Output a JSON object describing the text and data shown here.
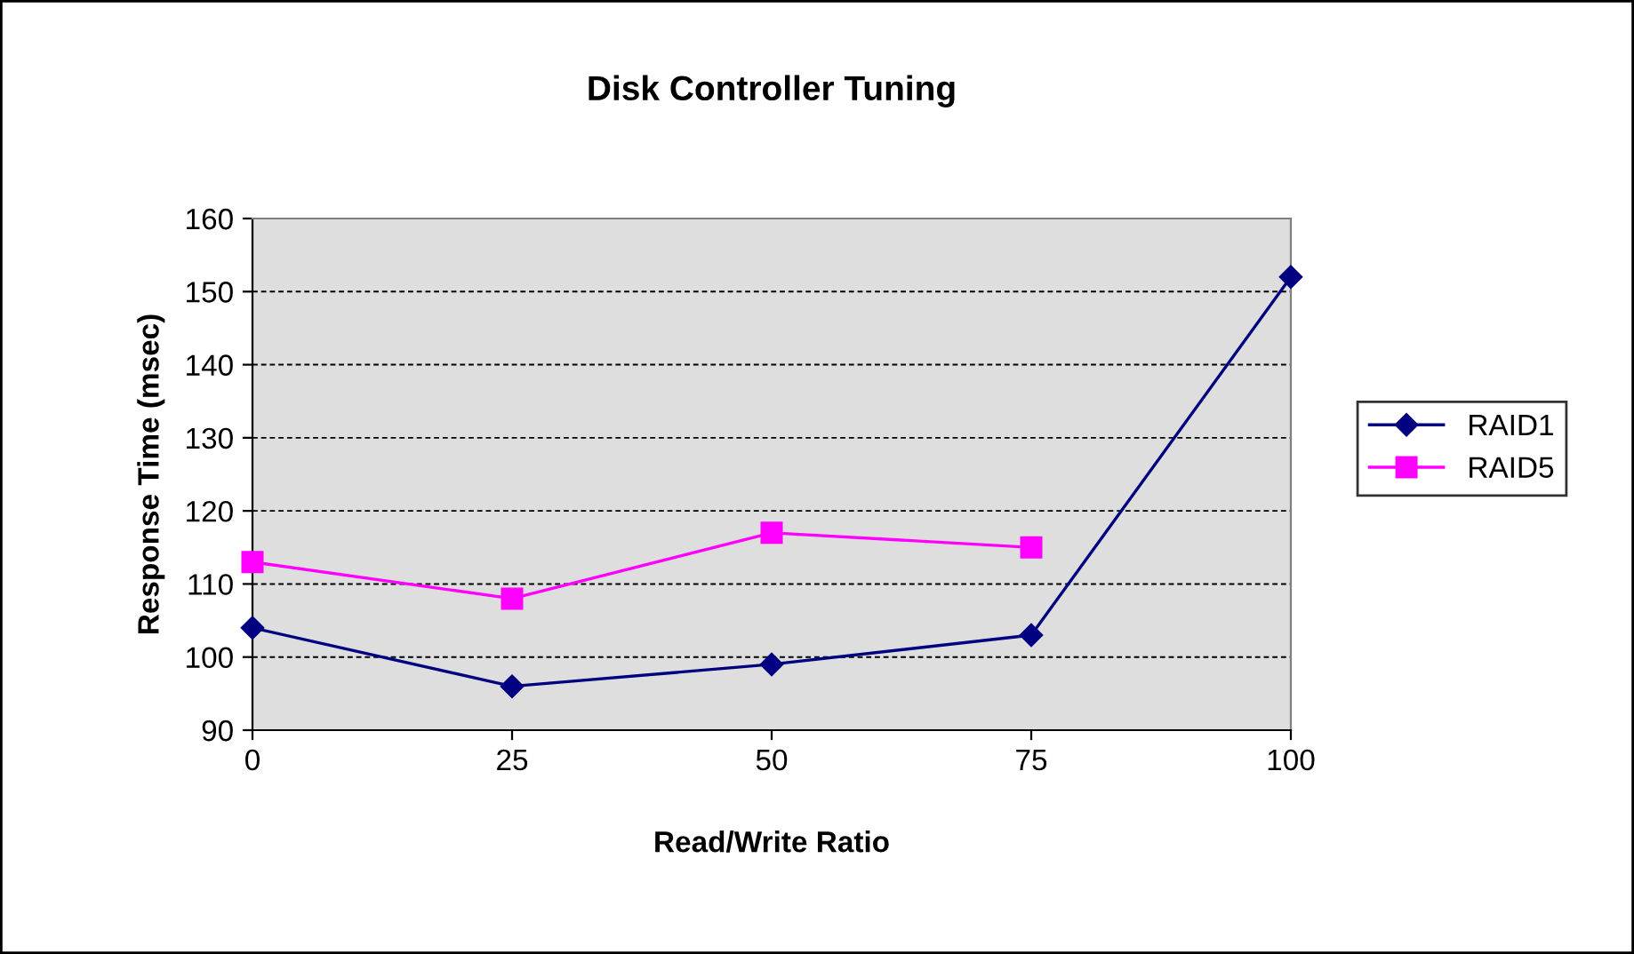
{
  "chart_data": {
    "type": "line",
    "title": "Disk Controller Tuning",
    "xlabel": "Read/Write Ratio",
    "ylabel": "Response Time (msec)",
    "x": [
      0,
      25,
      50,
      75,
      100
    ],
    "series": [
      {
        "name": "RAID1",
        "color": "#000080",
        "marker": "diamond",
        "values": [
          104,
          96,
          99,
          103,
          152
        ]
      },
      {
        "name": "RAID5",
        "color": "#ff00ff",
        "marker": "square",
        "values": [
          113,
          108,
          117,
          115,
          null
        ]
      }
    ],
    "xlim": [
      0,
      100
    ],
    "xticks": [
      0,
      25,
      50,
      75,
      100
    ],
    "ylim": [
      90,
      160
    ],
    "yticks": [
      90,
      100,
      110,
      120,
      130,
      140,
      150,
      160
    ],
    "grid": "y",
    "legend": "right",
    "line_style": "solid"
  }
}
